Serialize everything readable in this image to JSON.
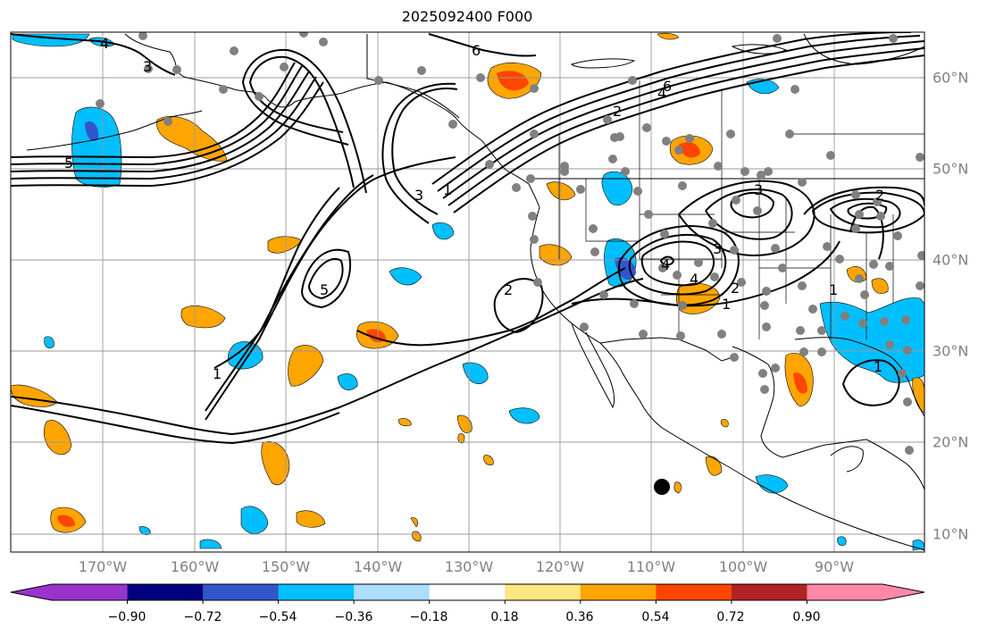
{
  "title": "2025092400 F000",
  "lon_labels": [
    "170°W",
    "160°W",
    "150°W",
    "140°W",
    "130°W",
    "120°W",
    "110°W",
    "100°W",
    "90°W"
  ],
  "lat_labels": [
    "60°N",
    "50°N",
    "40°N",
    "30°N",
    "20°N",
    "10°N"
  ],
  "contour_labels": [
    "6",
    "4",
    "2",
    "1",
    "3",
    "5",
    "4",
    "3",
    "2",
    "1",
    "2",
    "4",
    "3",
    "5",
    "3",
    "4",
    "6",
    "2",
    "1",
    "1",
    "1"
  ],
  "colorbar": {
    "tick_labels": [
      "−0.90",
      "−0.72",
      "−0.54",
      "−0.36",
      "−0.18",
      "0.18",
      "0.36",
      "0.54",
      "0.72",
      "0.90"
    ],
    "colors": [
      "#9933cc",
      "#000080",
      "#3355cc",
      "#00bfff",
      "#aadeff",
      "#ffffff",
      "#ffe680",
      "#ffa500",
      "#ff4500",
      "#b22222",
      "#ff88aa"
    ]
  },
  "map": {
    "projection": "PlateCarree",
    "extent": {
      "lon_min": -180,
      "lon_max": -80,
      "lat_min": 8,
      "lat_max": 65
    },
    "gridlines": true,
    "land_outline_color": "#000000",
    "contour_color": "#000000",
    "station_color": "#808080"
  }
}
